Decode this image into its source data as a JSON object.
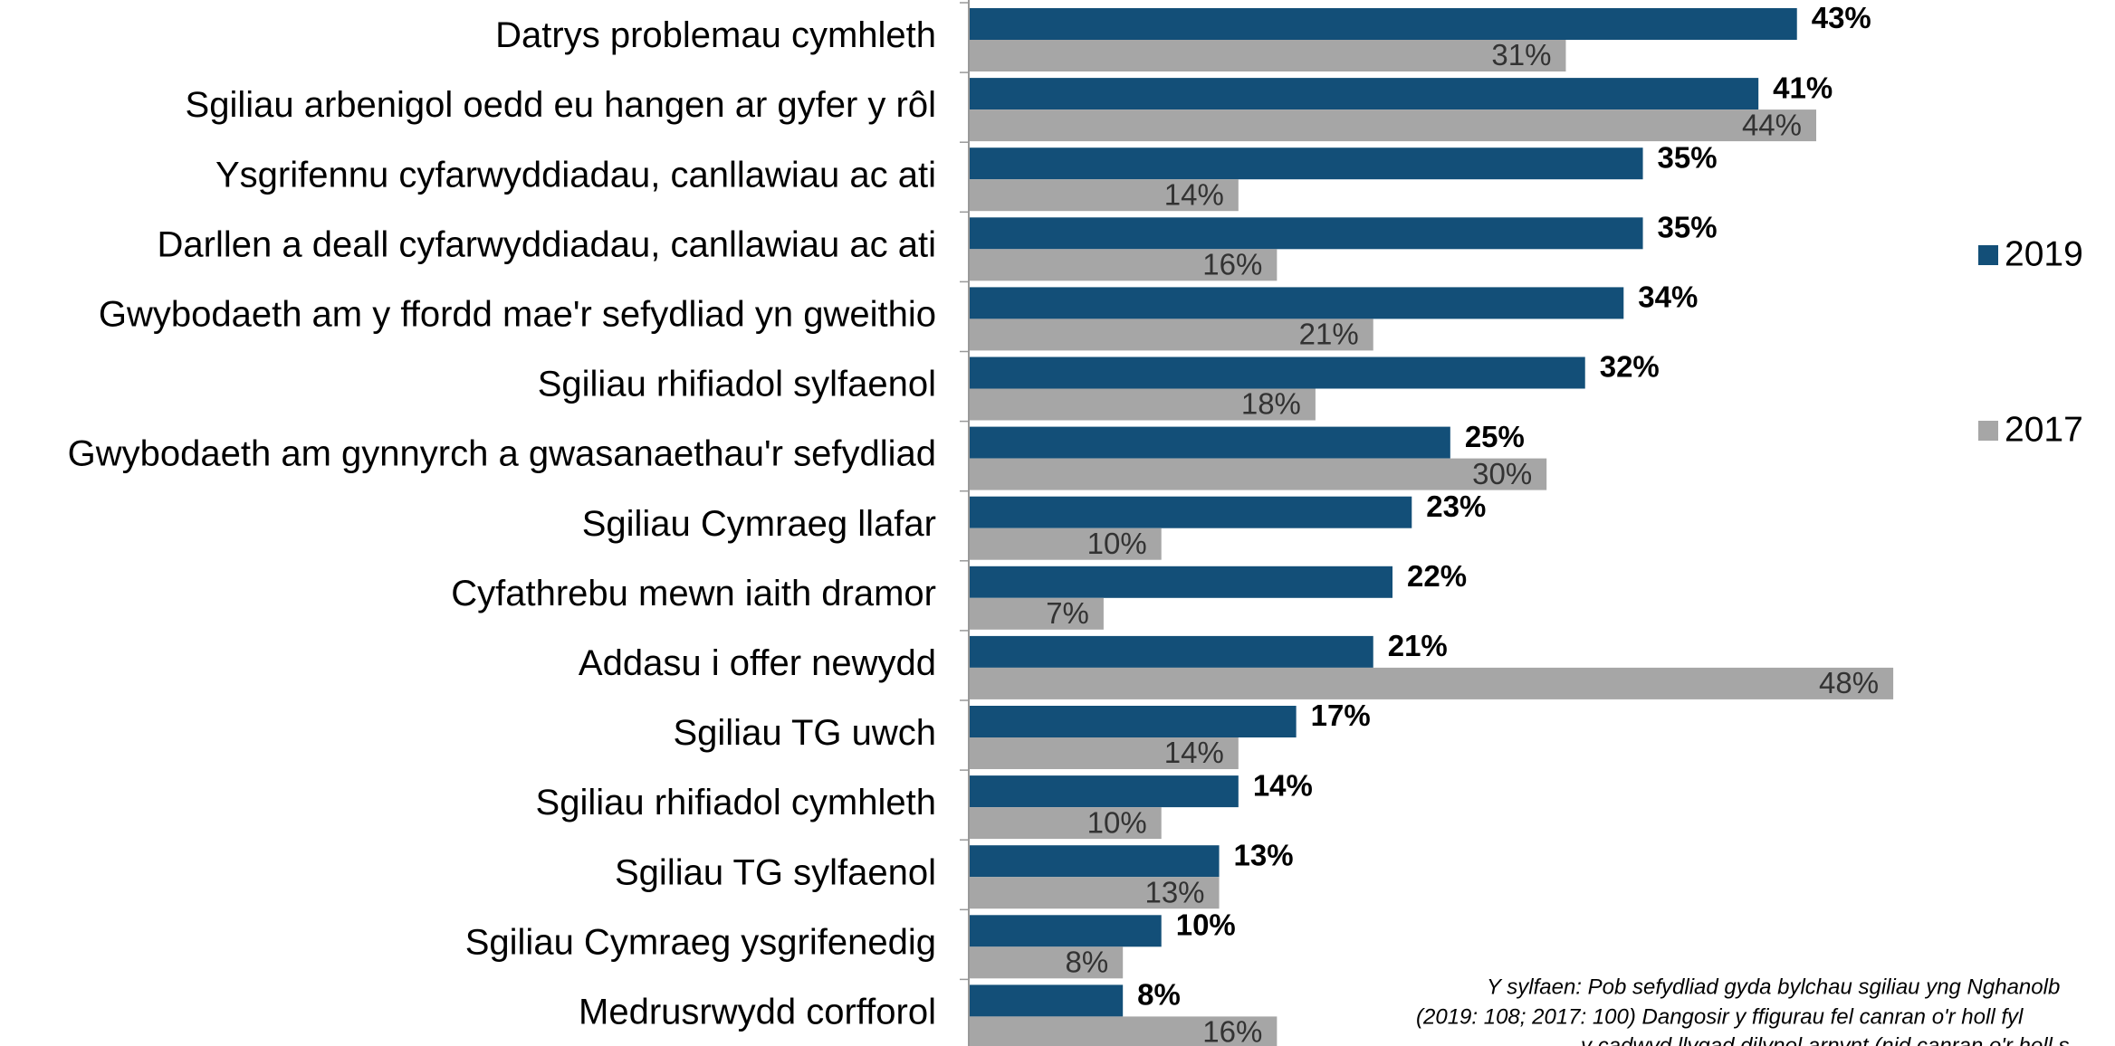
{
  "chart_data": {
    "type": "hbar",
    "categories": [
      "Datrys problemau cymhleth",
      "Sgiliau arbenigol oedd eu hangen ar gyfer y rôl",
      "Ysgrifennu cyfarwyddiadau, canllawiau ac ati",
      "Darllen a deall cyfarwyddiadau, canllawiau ac ati",
      "Gwybodaeth am y ffordd mae'r sefydliad yn gweithio",
      "Sgiliau rhifiadol sylfaenol",
      "Gwybodaeth am gynnyrch a gwasanaethau'r sefydliad",
      "Sgiliau Cymraeg llafar",
      "Cyfathrebu mewn iaith dramor",
      "Addasu i offer newydd",
      "Sgiliau TG uwch",
      "Sgiliau rhifiadol cymhleth",
      "Sgiliau TG sylfaenol",
      "Sgiliau Cymraeg ysgrifenedig",
      "Medrusrwydd corfforol"
    ],
    "series": [
      {
        "name": "2019",
        "color": "#134f78",
        "values": [
          43,
          41,
          35,
          35,
          34,
          32,
          25,
          23,
          22,
          21,
          17,
          14,
          13,
          10,
          8
        ],
        "value_labels": [
          "43%",
          "41%",
          "35%",
          "35%",
          "34%",
          "32%",
          "25%",
          "23%",
          "22%",
          "21%",
          "17%",
          "14%",
          "13%",
          "10%",
          "8%"
        ]
      },
      {
        "name": "2017",
        "color": "#a6a6a6",
        "values": [
          31,
          44,
          14,
          16,
          21,
          18,
          30,
          10,
          7,
          48,
          14,
          10,
          13,
          8,
          16
        ],
        "value_labels": [
          "31%",
          "44%",
          "14%",
          "16%",
          "21%",
          "18%",
          "30%",
          "10%",
          "7%",
          "48%",
          "14%",
          "10%",
          "13%",
          "8%",
          "16%"
        ]
      }
    ],
    "xlim": [
      0,
      55
    ],
    "legend": "right",
    "notes": [
      "Y sylfaen: Pob sefydliad gyda bylchau sgiliau yng Nghanolb",
      "(2019: 108; 2017: 100)     Dangosir y ffigurau fel canran o'r holl fyl",
      "y cadwyd llygad dilynol arnynt (nid canran o'r holl s"
    ]
  }
}
